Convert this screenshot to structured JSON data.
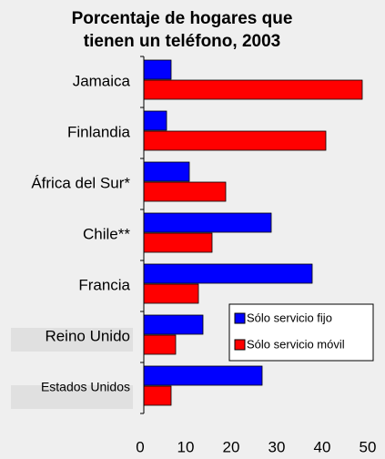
{
  "chart_data": {
    "type": "hbar",
    "title": "Porcentaje de hogares que tienen un teléfono, 2003",
    "categories": [
      "Jamaica",
      "Finlandia",
      "África del Sur*",
      "Chile**",
      "Francia",
      "Reino Unido",
      "Estados Unidos"
    ],
    "series": [
      {
        "name": "Sólo servicio fijo",
        "color": "#0000ff",
        "values": [
          6,
          5,
          10,
          28,
          37,
          13,
          26
        ]
      },
      {
        "name": "Sólo servicio móvil",
        "color": "#ff0000",
        "values": [
          48,
          40,
          18,
          15,
          12,
          7,
          6
        ]
      }
    ],
    "xlim": [
      0,
      50
    ],
    "xticks": [
      0,
      10,
      20,
      30,
      40,
      50
    ],
    "grid": false,
    "legend": "lower right"
  }
}
